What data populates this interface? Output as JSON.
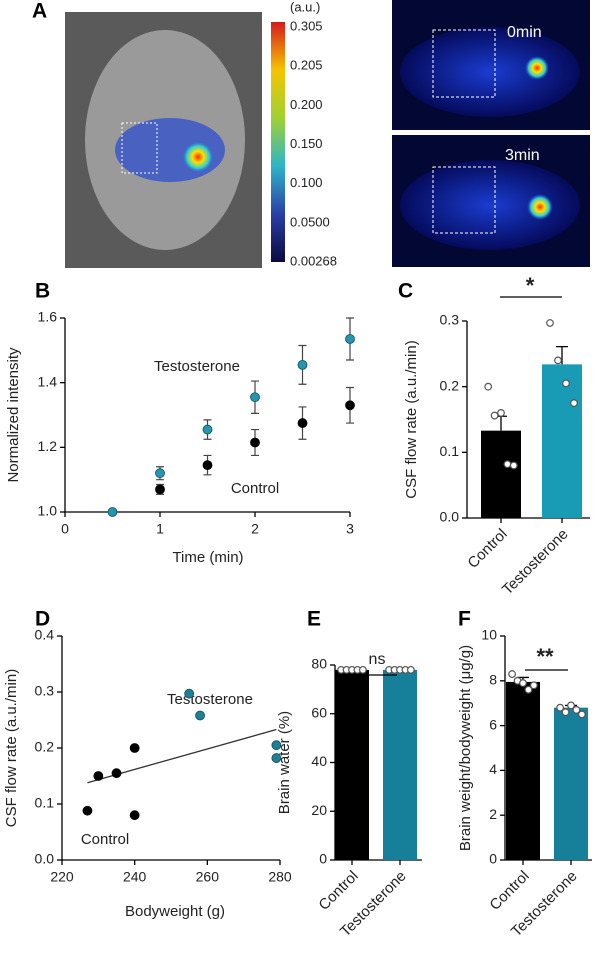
{
  "panel_a": {
    "panel_label": "A",
    "colorbar": {
      "unit": "(a.u.)",
      "labels": [
        "0.305",
        "0.205",
        "0.200",
        "0.150",
        "0.100",
        "0.0500",
        "0.00268"
      ]
    },
    "frames": [
      "0min",
      "3min"
    ]
  },
  "chart_data": [
    {
      "panel_label": "B",
      "type": "scatter",
      "xlabel": "Time (min)",
      "ylabel": "Normalized intensity",
      "xlim": [
        0,
        3
      ],
      "xticks": [
        0,
        1,
        2,
        3
      ],
      "ylim": [
        1.0,
        1.6
      ],
      "yticks": [
        {
          "value": 1.0,
          "label": "1.0"
        },
        1.2,
        1.4,
        1.6
      ],
      "series": [
        {
          "name": "Testosterone",
          "color": "#2596b0",
          "x": [
            0.5,
            1,
            1.5,
            2,
            2.5,
            3
          ],
          "values": [
            1.0,
            1.12,
            1.255,
            1.355,
            1.455,
            1.535
          ],
          "errors": [
            0,
            0.02,
            0.03,
            0.05,
            0.06,
            0.065
          ]
        },
        {
          "name": "Control",
          "color": "#000000",
          "x": [
            1,
            1.5,
            2,
            2.5,
            3
          ],
          "values": [
            1.07,
            1.145,
            1.215,
            1.275,
            1.33
          ],
          "errors": [
            0.015,
            0.03,
            0.04,
            0.05,
            0.055
          ]
        }
      ]
    },
    {
      "panel_label": "C",
      "type": "bar",
      "ylabel": "CSF flow rate (a.u./min)",
      "significance": "*",
      "categories": [
        "Control",
        "Testosterone"
      ],
      "values": [
        0.133,
        0.234
      ],
      "errors": [
        0.022,
        0.027
      ],
      "colors": [
        "#000000",
        "#1a9bb5"
      ],
      "points": [
        [
          0.2,
          0.156,
          0.16,
          0.082,
          0.08
        ],
        [
          0.297,
          0.24,
          0.205,
          0.175
        ]
      ],
      "ylim": [
        0,
        0.3
      ],
      "yticks": [
        {
          "value": 0,
          "label": "0.0"
        },
        0.1,
        0.2,
        0.3
      ]
    },
    {
      "panel_label": "D",
      "type": "scatter",
      "xlabel": "Bodyweight (g)",
      "ylabel": "CSF flow rate (a.u./min)",
      "xlim": [
        220,
        280
      ],
      "xticks": [
        220,
        240,
        260,
        280
      ],
      "ylim": [
        0,
        0.4
      ],
      "yticks": [
        {
          "value": 0,
          "label": "0.0"
        },
        0.1,
        0.2,
        0.3,
        0.4
      ],
      "series": [
        {
          "name": "Testosterone",
          "color": "#1f7f94",
          "x": [
            255,
            258,
            279,
            279
          ],
          "values": [
            0.297,
            0.258,
            0.205,
            0.182
          ]
        },
        {
          "name": "Control",
          "color": "#000000",
          "x": [
            227,
            230,
            235,
            240,
            240
          ],
          "values": [
            0.088,
            0.15,
            0.155,
            0.2,
            0.08
          ]
        }
      ],
      "fit_line": {
        "x": [
          227,
          279
        ],
        "values": [
          0.138,
          0.233
        ]
      }
    },
    {
      "panel_label": "E",
      "type": "bar",
      "ylabel": "Brain water (%)",
      "significance": "ns",
      "categories": [
        "Control",
        "Testosterone"
      ],
      "values": [
        78,
        78
      ],
      "errors": [
        0.3,
        0.3
      ],
      "colors": [
        "#000000",
        "#16809a"
      ],
      "points": [
        [
          78,
          78,
          78,
          78,
          78
        ],
        [
          78,
          78,
          78,
          78,
          78
        ]
      ],
      "ylim": [
        0,
        80
      ],
      "yticks": [
        0,
        20,
        40,
        60,
        80
      ]
    },
    {
      "panel_label": "F",
      "type": "bar",
      "ylabel": "Brain weight/bodyweight (μg/g)",
      "significance": "**",
      "categories": [
        "Control",
        "Testosterone"
      ],
      "values": [
        7.95,
        6.8
      ],
      "errors": [
        0.2,
        0.1
      ],
      "colors": [
        "#000000",
        "#16809a"
      ],
      "points": [
        [
          8.3,
          8.0,
          7.9,
          7.6,
          7.8
        ],
        [
          6.8,
          6.6,
          6.9,
          6.7,
          6.5
        ]
      ],
      "ylim": [
        0,
        10
      ],
      "yticks": [
        0,
        2,
        4,
        6,
        8,
        10
      ]
    }
  ]
}
